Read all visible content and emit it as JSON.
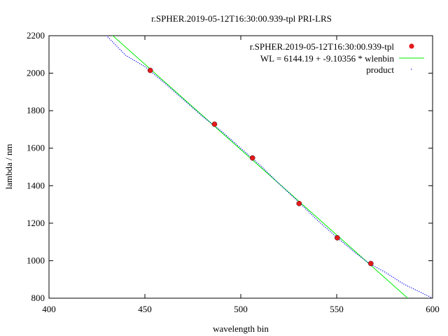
{
  "chart_data": {
    "type": "scatter",
    "title": "r.SPHER.2019-05-12T16:30:00.939-tpl   PRI-LRS",
    "xlabel": "wavelength bin",
    "ylabel": "lambda / nm",
    "xlim": [
      400,
      600
    ],
    "ylim": [
      800,
      2200
    ],
    "xticks": [
      400,
      450,
      500,
      550,
      600
    ],
    "yticks": [
      800,
      1000,
      1200,
      1400,
      1600,
      1800,
      2000,
      2200
    ],
    "grid": false,
    "legend_position": "top-right",
    "series": [
      {
        "name": "r.SPHER.2019-05-12T16:30:00.939-tpl",
        "kind": "points",
        "color": "#e41a1c",
        "x": [
          452.8,
          486.3,
          506.1,
          530.4,
          550.3,
          567.8
        ],
        "y": [
          2015,
          1728,
          1548,
          1305,
          1122,
          985
        ]
      },
      {
        "name": "WL = 6144.19 + -9.10356 * wlenbin",
        "kind": "line",
        "color": "#00ee00",
        "intercept": 6144.19,
        "slope": -9.10356
      },
      {
        "name": "product",
        "kind": "dots",
        "color": "#0000ee",
        "x": [
          430,
          440,
          450,
          460,
          470,
          480,
          490,
          500,
          510,
          520,
          530,
          540,
          550,
          560,
          567,
          575,
          585,
          595,
          600
        ],
        "y": [
          2200,
          2095,
          2035,
          1950,
          1860,
          1770,
          1690,
          1600,
          1510,
          1410,
          1315,
          1215,
          1125,
          1040,
          985,
          940,
          875,
          825,
          800
        ]
      }
    ]
  }
}
